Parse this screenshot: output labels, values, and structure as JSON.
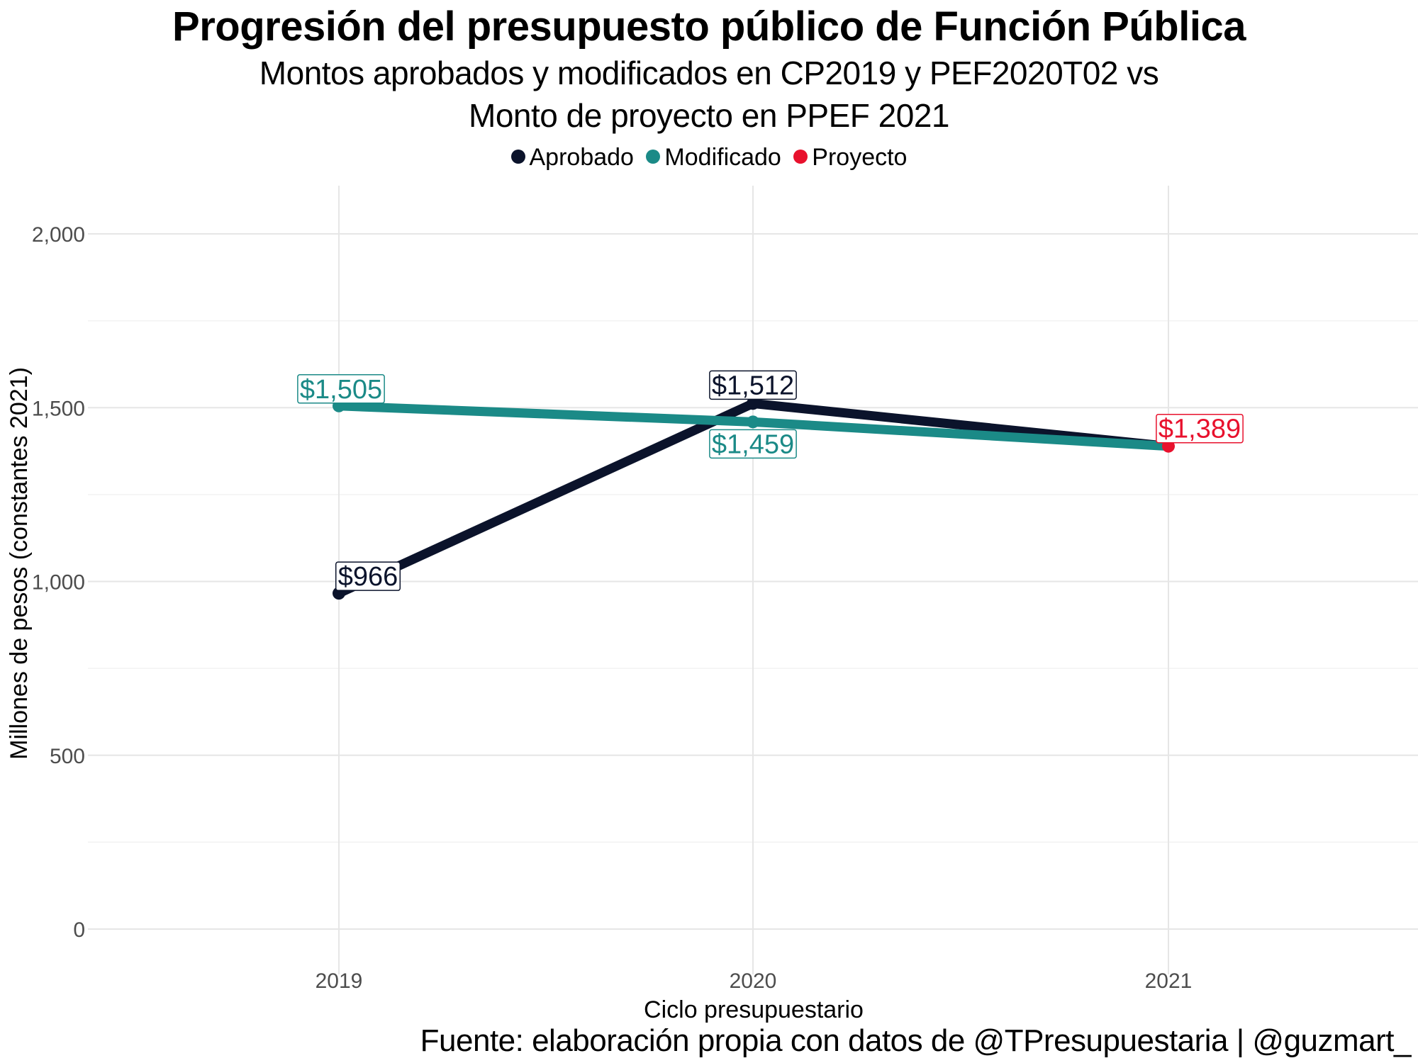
{
  "chart_data": {
    "type": "line",
    "title": "Progresión del presupuesto público de Función Pública",
    "subtitle_line1": "Montos aprobados y modificados en CP2019 y PEF2020T02 vs",
    "subtitle_line2": "Monto de proyecto en PPEF 2021",
    "xlabel": "Ciclo presupuestario",
    "ylabel": "Millones de pesos (constantes 2021)",
    "caption": "Fuente: elaboración propia con datos de @TPresupuestaria | @guzmart_",
    "x": [
      "2019",
      "2020",
      "2021"
    ],
    "ylim": [
      0,
      2000
    ],
    "yticks": [
      0,
      500,
      1000,
      1500,
      2000
    ],
    "ytick_labels": [
      "0",
      "500",
      "1,000",
      "1,500",
      "2,000"
    ],
    "legend_position": "top",
    "grid": true,
    "series": [
      {
        "name": "Aprobado",
        "color": "#0b132b",
        "points": [
          {
            "x": "2019",
            "y": 966,
            "label": "$966"
          },
          {
            "x": "2020",
            "y": 1512,
            "label": "$1,512"
          }
        ]
      },
      {
        "name": "Modificado",
        "color": "#1b8a87",
        "points": [
          {
            "x": "2019",
            "y": 1505,
            "label": "$1,505"
          },
          {
            "x": "2020",
            "y": 1459,
            "label": "$1,459"
          }
        ]
      },
      {
        "name": "Proyecto",
        "color": "#e8112d",
        "points": [
          {
            "x": "2021",
            "y": 1389,
            "label": "$1,389"
          }
        ]
      }
    ]
  }
}
